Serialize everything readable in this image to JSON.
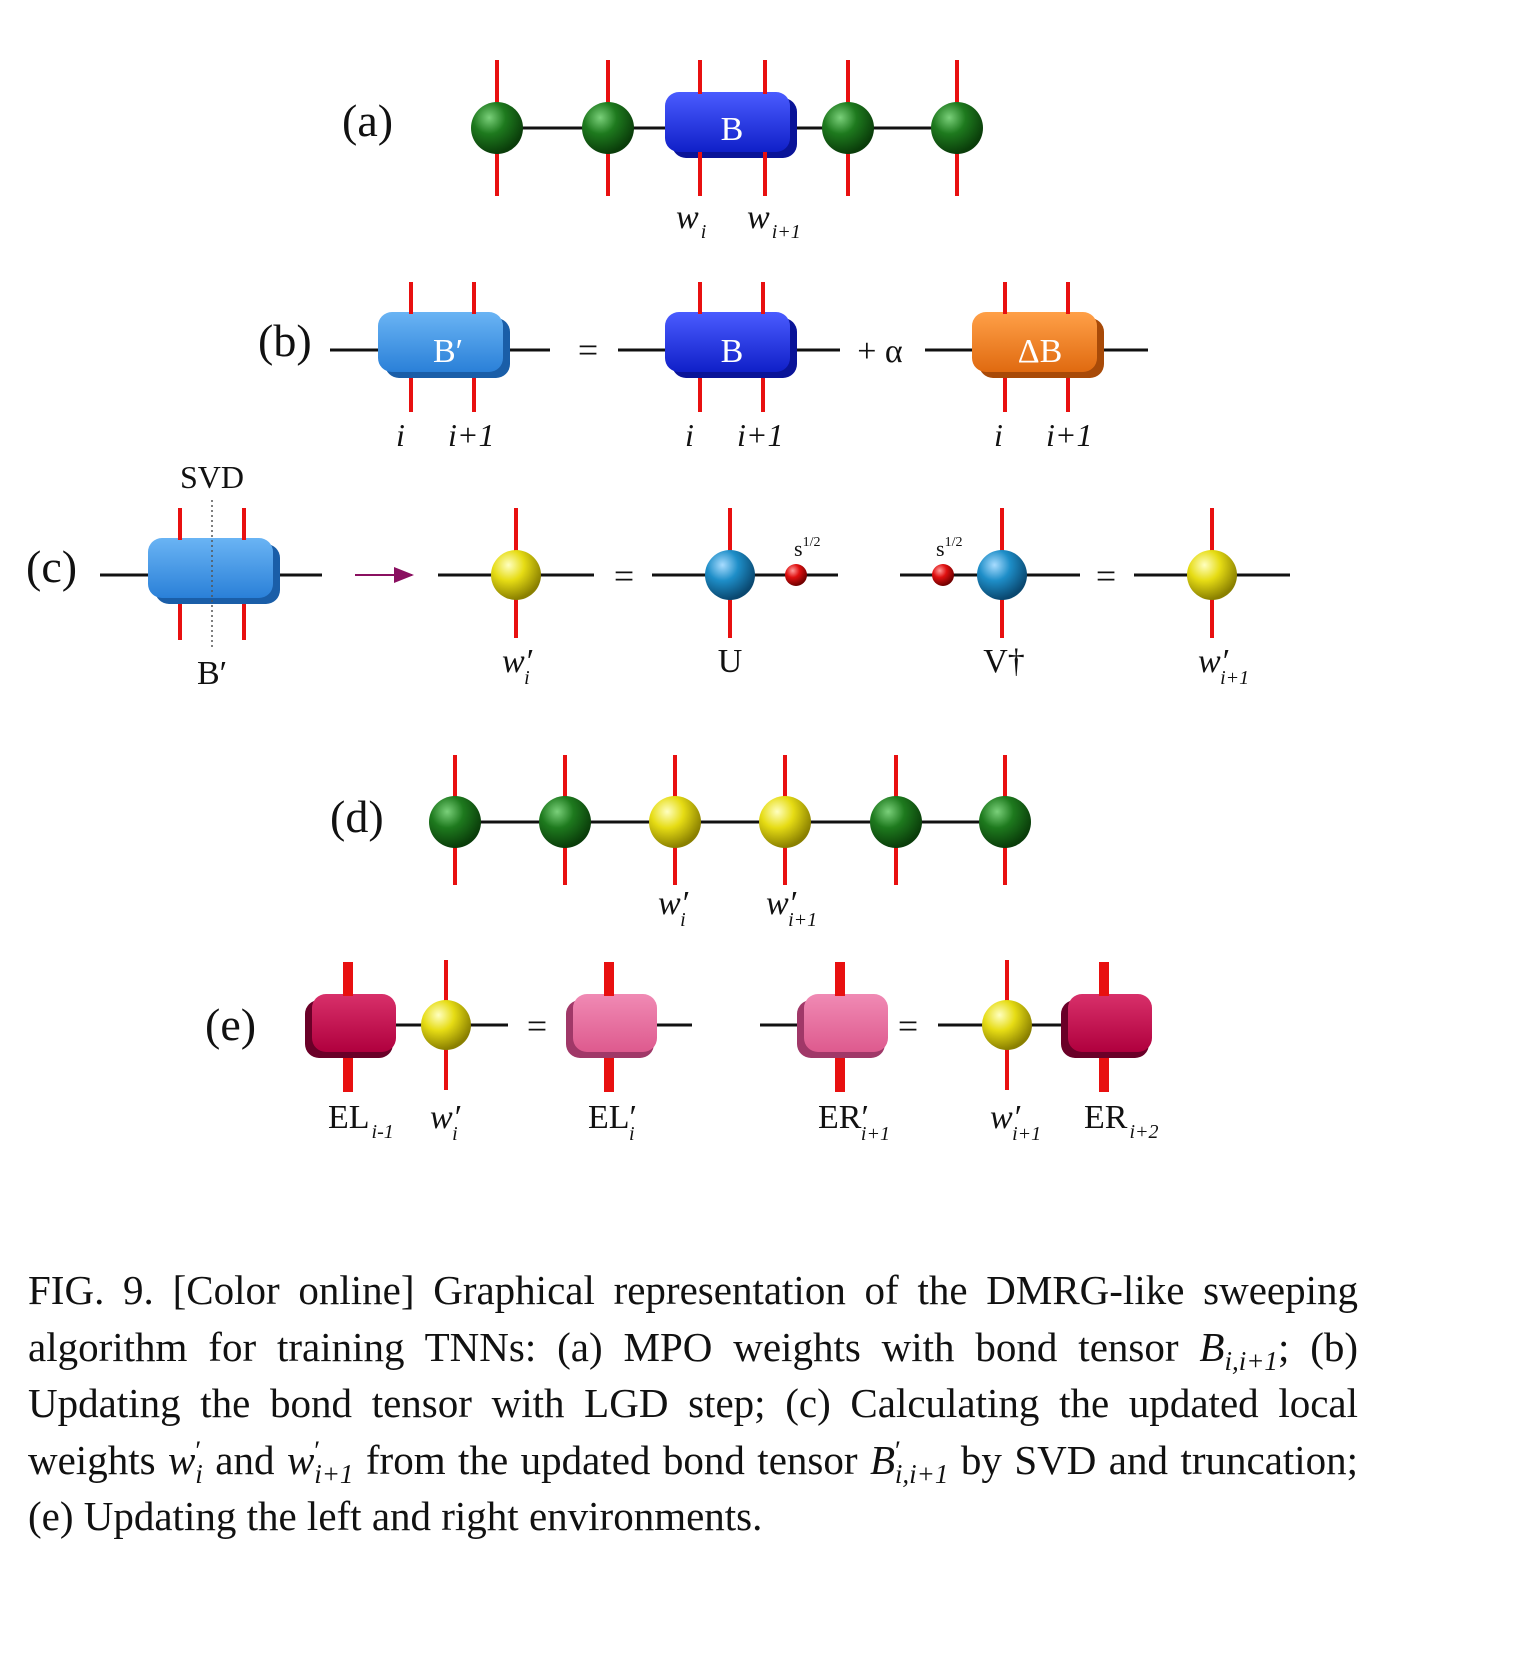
{
  "panels": {
    "a": {
      "label": "(a)",
      "box": "B",
      "w": "w",
      "sub_i": "i",
      "sub_i1": "i+1"
    },
    "b": {
      "label": "(b)",
      "box_prime": "B′",
      "equals": "=",
      "box": "B",
      "plus_alpha": "+ α",
      "delta_box": "ΔB",
      "idx_i": "i",
      "idx_i1": "i+1"
    },
    "c": {
      "label": "(c)",
      "svd": "SVD",
      "box_caption": "B′",
      "equals": "=",
      "w": "w′",
      "sub_i": "i",
      "sub_i1": "i+1",
      "s_half": "s",
      "s_half_sup": "1/2",
      "u": "U",
      "vdag": "V†"
    },
    "d": {
      "label": "(d)",
      "w": "w′",
      "sub_i": "i",
      "sub_i1": "i+1"
    },
    "e": {
      "label": "(e)",
      "equals": "=",
      "el": "EL",
      "el_sub": "i-1",
      "w": "w′",
      "sub_i": "i",
      "el_prime": "EL′",
      "el_prime_sub": "i",
      "er_prime": "ER′",
      "er_prime_sub": "i+1",
      "w2_sub": "i+1",
      "er": "ER",
      "er_sub": "i+2"
    }
  },
  "caption": {
    "fig": "FIG. 9.",
    "text1": "[Color online] Graphical representation of the DMRG-like sweeping algorithm for training TNNs: (a) MPO weights with bond tensor",
    "b_sym": "B",
    "b_sub": "i,i+1",
    "text2": "; (b) Updating the bond tensor with LGD step; (c) Calculating the updated local weights",
    "w_sym": "w",
    "w_sup": "′",
    "w_sub": "i",
    "text3": "and",
    "w2_sub": "i+1",
    "text4": "from the updated bond tensor",
    "b2_sup": "′",
    "b2_sub": "i,i+1",
    "text5": "by SVD and truncation; (e) Updating the left and right environments."
  },
  "colors": {
    "green": "#1e7a1e",
    "yellow": "#e6dc14",
    "cyan": "#1e8ec8",
    "blue": "#1a2ee0",
    "lightblue": "#3a8ee0",
    "orange": "#ee7a18",
    "crimson": "#c0004a",
    "pink": "#e46898",
    "red": "#e81010"
  }
}
